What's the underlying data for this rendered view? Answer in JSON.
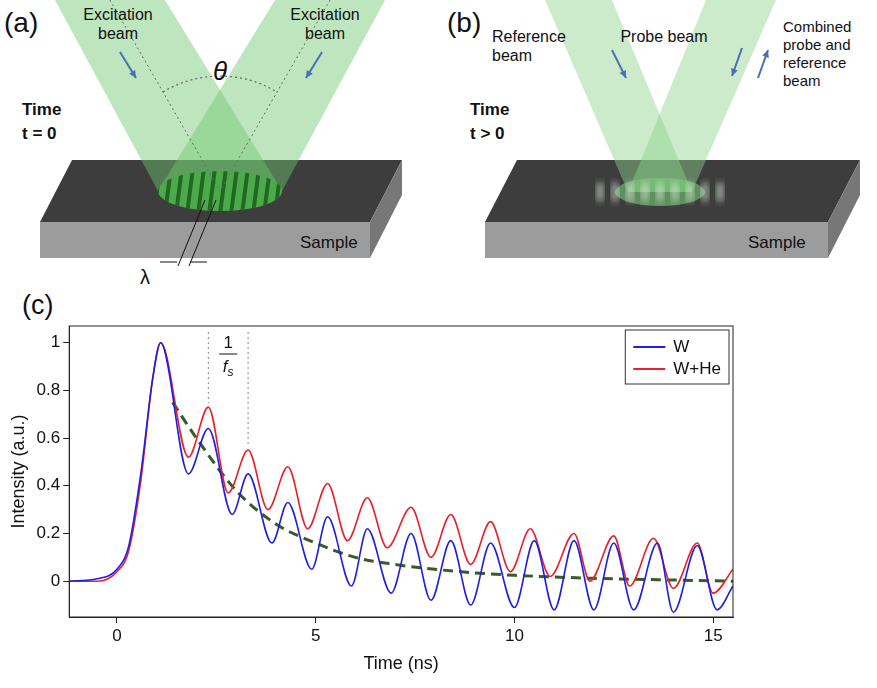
{
  "panels": {
    "a": {
      "letter": "(a)",
      "beam_labels": [
        "Excitation beam",
        "Excitation beam"
      ],
      "angle_label": "θ",
      "time_label": "Time",
      "time_value": "t = 0",
      "wavelength_label": "λ",
      "sample_label": "Sample"
    },
    "b": {
      "letter": "(b)",
      "beam_labels": [
        "Reference beam",
        "Probe beam",
        "Combined probe and reference beam"
      ],
      "time_label": "Time",
      "time_value": "t > 0",
      "sample_label": "Sample"
    }
  },
  "chart_data": {
    "letter": "(c)",
    "type": "line",
    "x_label": "Time (ns)",
    "y_label": "Intensity (a.u.)",
    "xlim": [
      -1.2,
      15.5
    ],
    "xticks": [
      0,
      5,
      10,
      15
    ],
    "ylim": [
      -0.15,
      1.07
    ],
    "yticks": [
      0,
      0.2,
      0.4,
      0.6,
      0.8,
      1
    ],
    "grid": false,
    "legend": "upper right",
    "annotation": {
      "numerator": "1",
      "denominator": "f",
      "subscript": "s",
      "x": [
        2.3,
        3.3
      ]
    },
    "series": [
      {
        "name": "W",
        "color": "#1f1fe0",
        "x": [
          -1.2,
          -0.5,
          0,
          0.3,
          0.6,
          0.9,
          1.1,
          1.8,
          2.3,
          2.9,
          3.3,
          3.9,
          4.3,
          4.9,
          5.3,
          5.9,
          6.3,
          6.9,
          7.4,
          7.9,
          8.4,
          8.9,
          9.4,
          10.0,
          10.5,
          11.0,
          11.5,
          12.0,
          12.5,
          13.0,
          13.6,
          14.0,
          14.6,
          15.1,
          15.5
        ],
        "values": [
          0,
          0.01,
          0.05,
          0.15,
          0.45,
          0.85,
          1.0,
          0.45,
          0.64,
          0.28,
          0.45,
          0.16,
          0.33,
          0.05,
          0.27,
          -0.02,
          0.22,
          -0.05,
          0.2,
          -0.08,
          0.17,
          -0.1,
          0.16,
          -0.11,
          0.17,
          -0.12,
          0.17,
          -0.12,
          0.16,
          -0.12,
          0.16,
          -0.13,
          0.15,
          -0.12,
          -0.02
        ]
      },
      {
        "name": "W+He",
        "color": "#e8202a",
        "x": [
          -1.2,
          -0.5,
          0,
          0.3,
          0.6,
          0.9,
          1.1,
          1.8,
          2.3,
          2.8,
          3.3,
          3.8,
          4.3,
          4.8,
          5.3,
          5.8,
          6.3,
          6.8,
          7.4,
          7.9,
          8.4,
          8.9,
          9.4,
          9.9,
          10.4,
          10.9,
          11.5,
          11.9,
          12.5,
          12.9,
          13.5,
          14.0,
          14.6,
          15.0,
          15.5
        ],
        "values": [
          0,
          0,
          0.04,
          0.13,
          0.42,
          0.85,
          1.0,
          0.52,
          0.73,
          0.37,
          0.55,
          0.3,
          0.48,
          0.22,
          0.41,
          0.17,
          0.35,
          0.14,
          0.31,
          0.1,
          0.28,
          0.07,
          0.25,
          0.04,
          0.22,
          0.02,
          0.2,
          0,
          0.19,
          -0.02,
          0.18,
          -0.03,
          0.16,
          -0.05,
          0.05
        ]
      },
      {
        "color": "#3a5a2a",
        "line_style": "dashed",
        "x": [
          1.4,
          2,
          3,
          4,
          5,
          6,
          7,
          8,
          9,
          10,
          12,
          14,
          15.5
        ],
        "values": [
          0.75,
          0.6,
          0.38,
          0.24,
          0.16,
          0.1,
          0.07,
          0.05,
          0.035,
          0.025,
          0.012,
          0.005,
          0
        ]
      }
    ]
  }
}
